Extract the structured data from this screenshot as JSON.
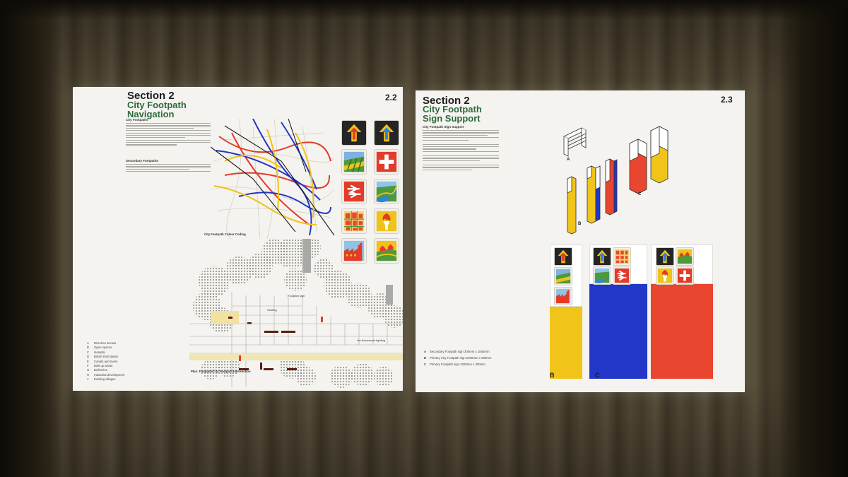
{
  "left_slide": {
    "section": "Section 2",
    "title_line1": "City Footpath",
    "title_line2": "Navigation",
    "page_number": "2.2",
    "subhead_1": "City Footpaths",
    "subhead_2": "Secondary Footpaths",
    "map_caption": "City Footpath Colour Coding",
    "plan_caption": "Plan: Footpath/City Footpath Intersection",
    "plan_label_1": "Footpath sign",
    "plan_label_2": "Seating",
    "plan_label_3": "4m fluorescent lighting",
    "legend_keys": [
      "A",
      "B",
      "C",
      "D",
      "E",
      "F",
      "G",
      "H",
      "J"
    ],
    "legend_items": [
      "Direction arrows",
      "Open spaces",
      "Hospital",
      "British Rail station",
      "Canals and rivers",
      "Built up areas",
      "Deliveries",
      "Industrial development",
      "Existing villages"
    ]
  },
  "right_slide": {
    "section": "Section 2",
    "title_line1": "City Footpath",
    "title_line2": "Sign Support",
    "page_number": "2.3",
    "subhead": "City Footpath Sign Support",
    "sign_labels": [
      "A",
      "B",
      "C"
    ],
    "bar_labels": [
      "B",
      "C"
    ],
    "note_keys": [
      "A",
      "B",
      "C"
    ],
    "notes": [
      "Secondary Footpath sign 300mm x 1845mm",
      "Primary City Footpath sign 2200mm x 300mm",
      "Primary Footpath sign 2200mm x 300mm"
    ]
  },
  "colors": {
    "green_title": "#2d6b3a",
    "sign_yellow": "#f0c419",
    "sign_blue": "#2236c8",
    "sign_red": "#e8462e"
  },
  "icons": [
    "arrow-up-red-icon",
    "arrow-up-blue-icon",
    "fields-icon",
    "hospital-cross-icon",
    "british-rail-icon",
    "river-icon",
    "built-up-icon",
    "torch-icon",
    "industry-icon",
    "village-icon"
  ]
}
